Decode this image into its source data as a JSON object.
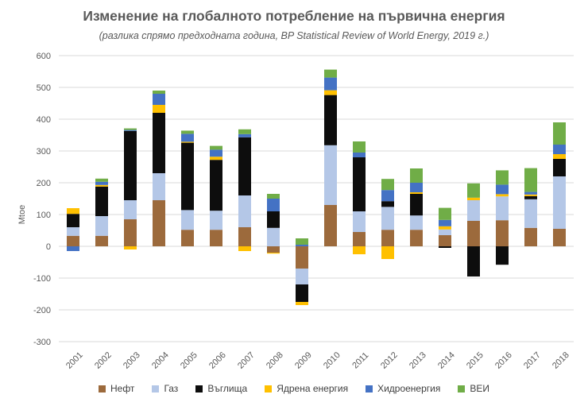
{
  "chart_data": {
    "type": "bar",
    "stacked": true,
    "title": "Изменение на глобалното  потребление на първична енергия",
    "subtitle": "(разлика спрямо предходната година, BP Statistical Review of World Energy, 2019 г.)",
    "xlabel": "",
    "ylabel": "Mtoe",
    "ylim": [
      -300,
      600
    ],
    "yticks": [
      "600",
      "500",
      "400",
      "300",
      "200",
      "100",
      "0",
      "-100",
      "-200",
      "-300"
    ],
    "ytick_values": [
      600,
      500,
      400,
      300,
      200,
      100,
      0,
      -100,
      -200,
      -300
    ],
    "grid": true,
    "legend_position": "bottom",
    "categories": [
      "2001",
      "2002",
      "2003",
      "2004",
      "2005",
      "2006",
      "2007",
      "2008",
      "2009",
      "2010",
      "2011",
      "2012",
      "2013",
      "2014",
      "2015",
      "2016",
      "2017",
      "2018"
    ],
    "series": [
      {
        "name": "Нефт",
        "color": "#9C6A3C",
        "values": [
          33,
          33,
          85,
          145,
          52,
          52,
          60,
          -20,
          -70,
          130,
          45,
          52,
          52,
          35,
          80,
          82,
          58,
          55
        ]
      },
      {
        "name": "Газ",
        "color": "#B4C7E7",
        "values": [
          27,
          62,
          60,
          85,
          62,
          60,
          100,
          58,
          -50,
          188,
          65,
          72,
          45,
          18,
          65,
          75,
          90,
          165
        ]
      },
      {
        "name": "Въглища",
        "color": "#0D0D0D",
        "values": [
          42,
          93,
          218,
          190,
          212,
          160,
          183,
          52,
          -55,
          158,
          170,
          18,
          68,
          -5,
          -95,
          -58,
          10,
          55
        ]
      },
      {
        "name": "Ядрена енергия",
        "color": "#FFC000",
        "values": [
          18,
          5,
          -10,
          25,
          3,
          10,
          -15,
          -3,
          -10,
          15,
          -25,
          -40,
          5,
          10,
          8,
          7,
          5,
          15
        ]
      },
      {
        "name": "Хидроенергия",
        "color": "#4472C4",
        "values": [
          -15,
          10,
          3,
          35,
          25,
          22,
          10,
          40,
          5,
          40,
          15,
          35,
          30,
          20,
          0,
          30,
          8,
          30
        ]
      },
      {
        "name": "ВЕИ",
        "color": "#70AD47",
        "values": [
          0,
          10,
          5,
          10,
          10,
          12,
          15,
          15,
          20,
          25,
          35,
          35,
          45,
          38,
          45,
          45,
          75,
          70
        ]
      }
    ]
  }
}
